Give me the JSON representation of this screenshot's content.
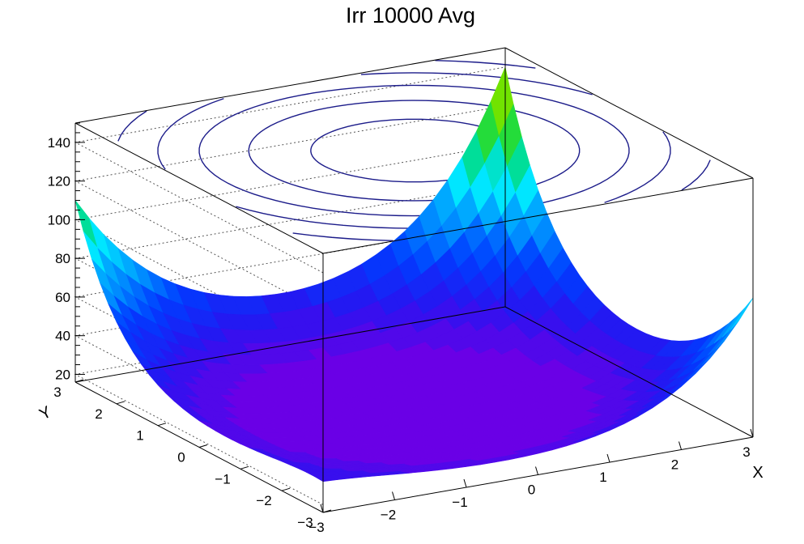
{
  "chart_data": {
    "type": "surface",
    "title": "Irr 10000 Avg",
    "xlabel": "X",
    "ylabel": "Y",
    "zlabel": "",
    "xlim": [
      -3,
      3
    ],
    "ylim": [
      -3,
      3
    ],
    "zlim": [
      16,
      150
    ],
    "x_ticks": [
      "−3",
      "−2",
      "−1",
      "0",
      "1",
      "2",
      "3"
    ],
    "y_ticks": [
      "−3",
      "−2",
      "−1",
      "0",
      "1",
      "2",
      "3"
    ],
    "z_ticks": [
      "20",
      "40",
      "60",
      "80",
      "100",
      "120",
      "140"
    ],
    "z_tick_values": [
      20,
      40,
      60,
      80,
      100,
      120,
      140
    ],
    "grid": true,
    "palette": "rainbow",
    "colors": {
      "contour": "#1c1c8a",
      "low": "#6a00e6",
      "high": "#e60000"
    },
    "corner_values": {
      "x_-3_y_-3": 32,
      "x_3_y_3": 140,
      "x_-3_y_3": 110,
      "x_3_y_-3": 88
    },
    "minimum_value": 16
  }
}
